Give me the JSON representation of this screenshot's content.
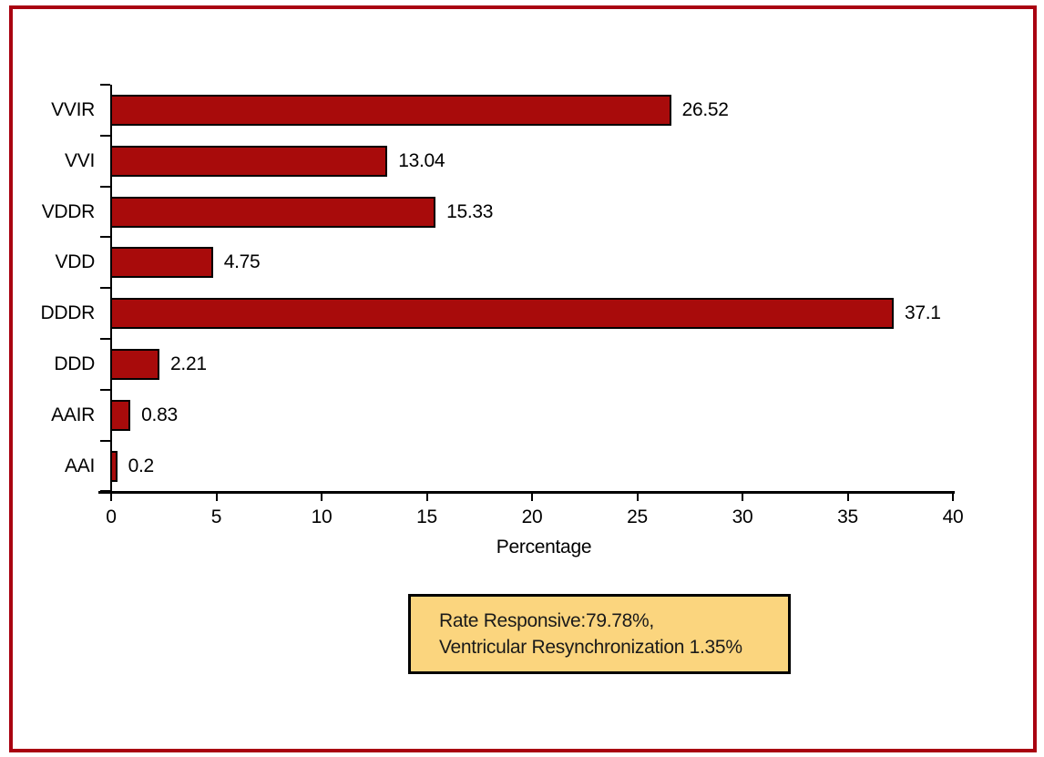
{
  "figure": {
    "frame_border_color": "#a90211",
    "background_color": "#ffffff"
  },
  "chart_data": {
    "type": "bar",
    "orientation": "horizontal",
    "categories": [
      "VVIR",
      "VVI",
      "VDDR",
      "VDD",
      "DDDR",
      "DDD",
      "AAIR",
      "AAI"
    ],
    "values": [
      26.52,
      13.04,
      15.33,
      4.75,
      37.1,
      2.21,
      0.83,
      0.2
    ],
    "value_labels": [
      "26.52",
      "13.04",
      "15.33",
      "4.75",
      "37.1",
      "2.21",
      "0.83",
      "0.2"
    ],
    "title": "",
    "xlabel": "Percentage",
    "ylabel": "",
    "xlim": [
      0,
      40
    ],
    "xticks": [
      0,
      5,
      10,
      15,
      20,
      25,
      30,
      35,
      40
    ],
    "grid": false,
    "legend_position": "none",
    "bar_color": "#a80b0b",
    "bar_border_color": "#000000",
    "axis_color": "#000000",
    "label_color": "#000000"
  },
  "annotation": {
    "line1": "Rate Responsive:79.78%,",
    "line2": "Ventricular Resynchronization 1.35%",
    "background": "#fbd57e",
    "border_color": "#000000",
    "text_color": "#1a1a1a"
  }
}
